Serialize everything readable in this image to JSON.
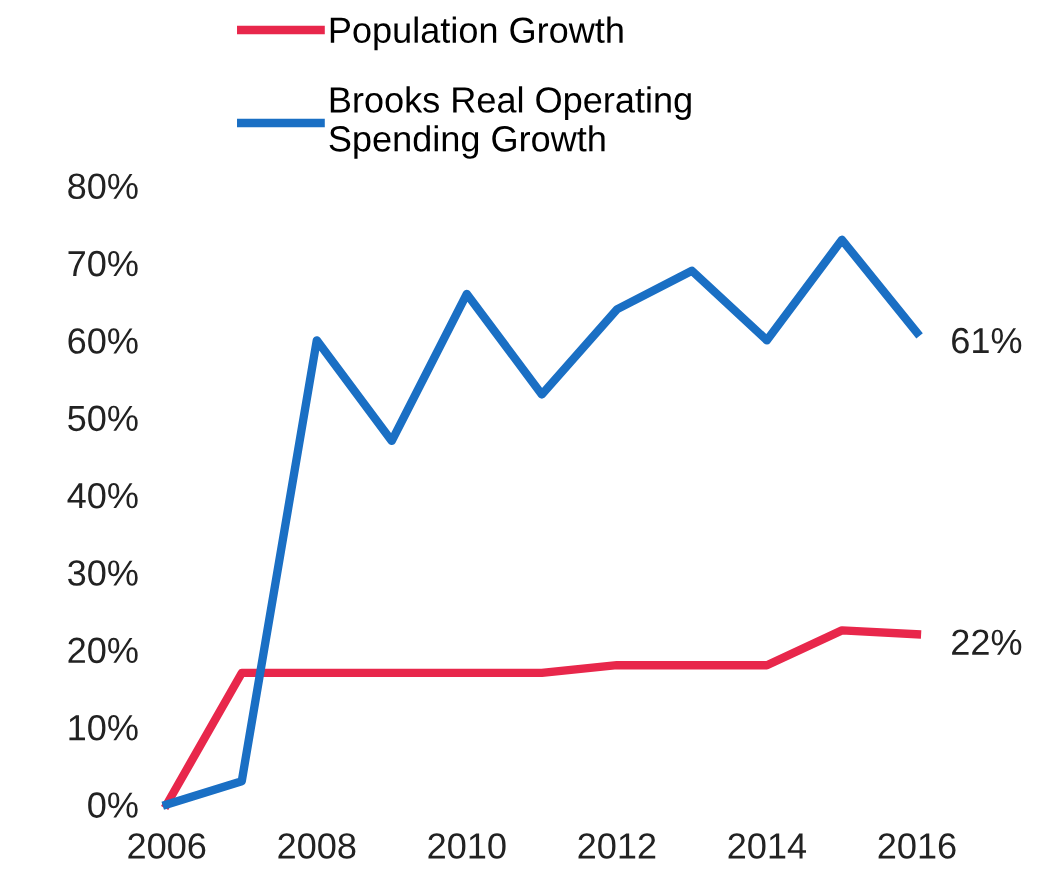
{
  "chart_data": {
    "type": "line",
    "x": [
      2006,
      2007,
      2008,
      2009,
      2010,
      2011,
      2012,
      2013,
      2014,
      2015,
      2016
    ],
    "series": [
      {
        "name": "Population Growth",
        "color": "#e8274b",
        "values": [
          0,
          17,
          17,
          17,
          17,
          17,
          18,
          18,
          18,
          22.5,
          22
        ]
      },
      {
        "name": "Brooks Real Operating Spending Growth",
        "color": "#1a6fc4",
        "values": [
          0,
          3,
          60,
          47,
          66,
          53,
          64,
          69,
          60,
          73,
          61
        ]
      }
    ],
    "xlim": [
      2006,
      2016
    ],
    "xticks": [
      2006,
      2008,
      2010,
      2012,
      2014,
      2016
    ],
    "ylim": [
      0,
      80
    ],
    "yticks": [
      {
        "value": 0,
        "label": "0%"
      },
      {
        "value": 10,
        "label": "10%"
      },
      {
        "value": 20,
        "label": "20%"
      },
      {
        "value": 30,
        "label": "30%"
      },
      {
        "value": 40,
        "label": "40%"
      },
      {
        "value": 50,
        "label": "50%"
      },
      {
        "value": 60,
        "label": "60%"
      },
      {
        "value": 70,
        "label": "70%"
      },
      {
        "value": 80,
        "label": "80%"
      }
    ],
    "annotations": [
      {
        "text": "61%",
        "x": 2016,
        "y": 61
      },
      {
        "text": "22%",
        "x": 2016,
        "y": 22
      }
    ],
    "legend": "top left",
    "grid": false,
    "marker": "none",
    "line_style": "solid"
  }
}
